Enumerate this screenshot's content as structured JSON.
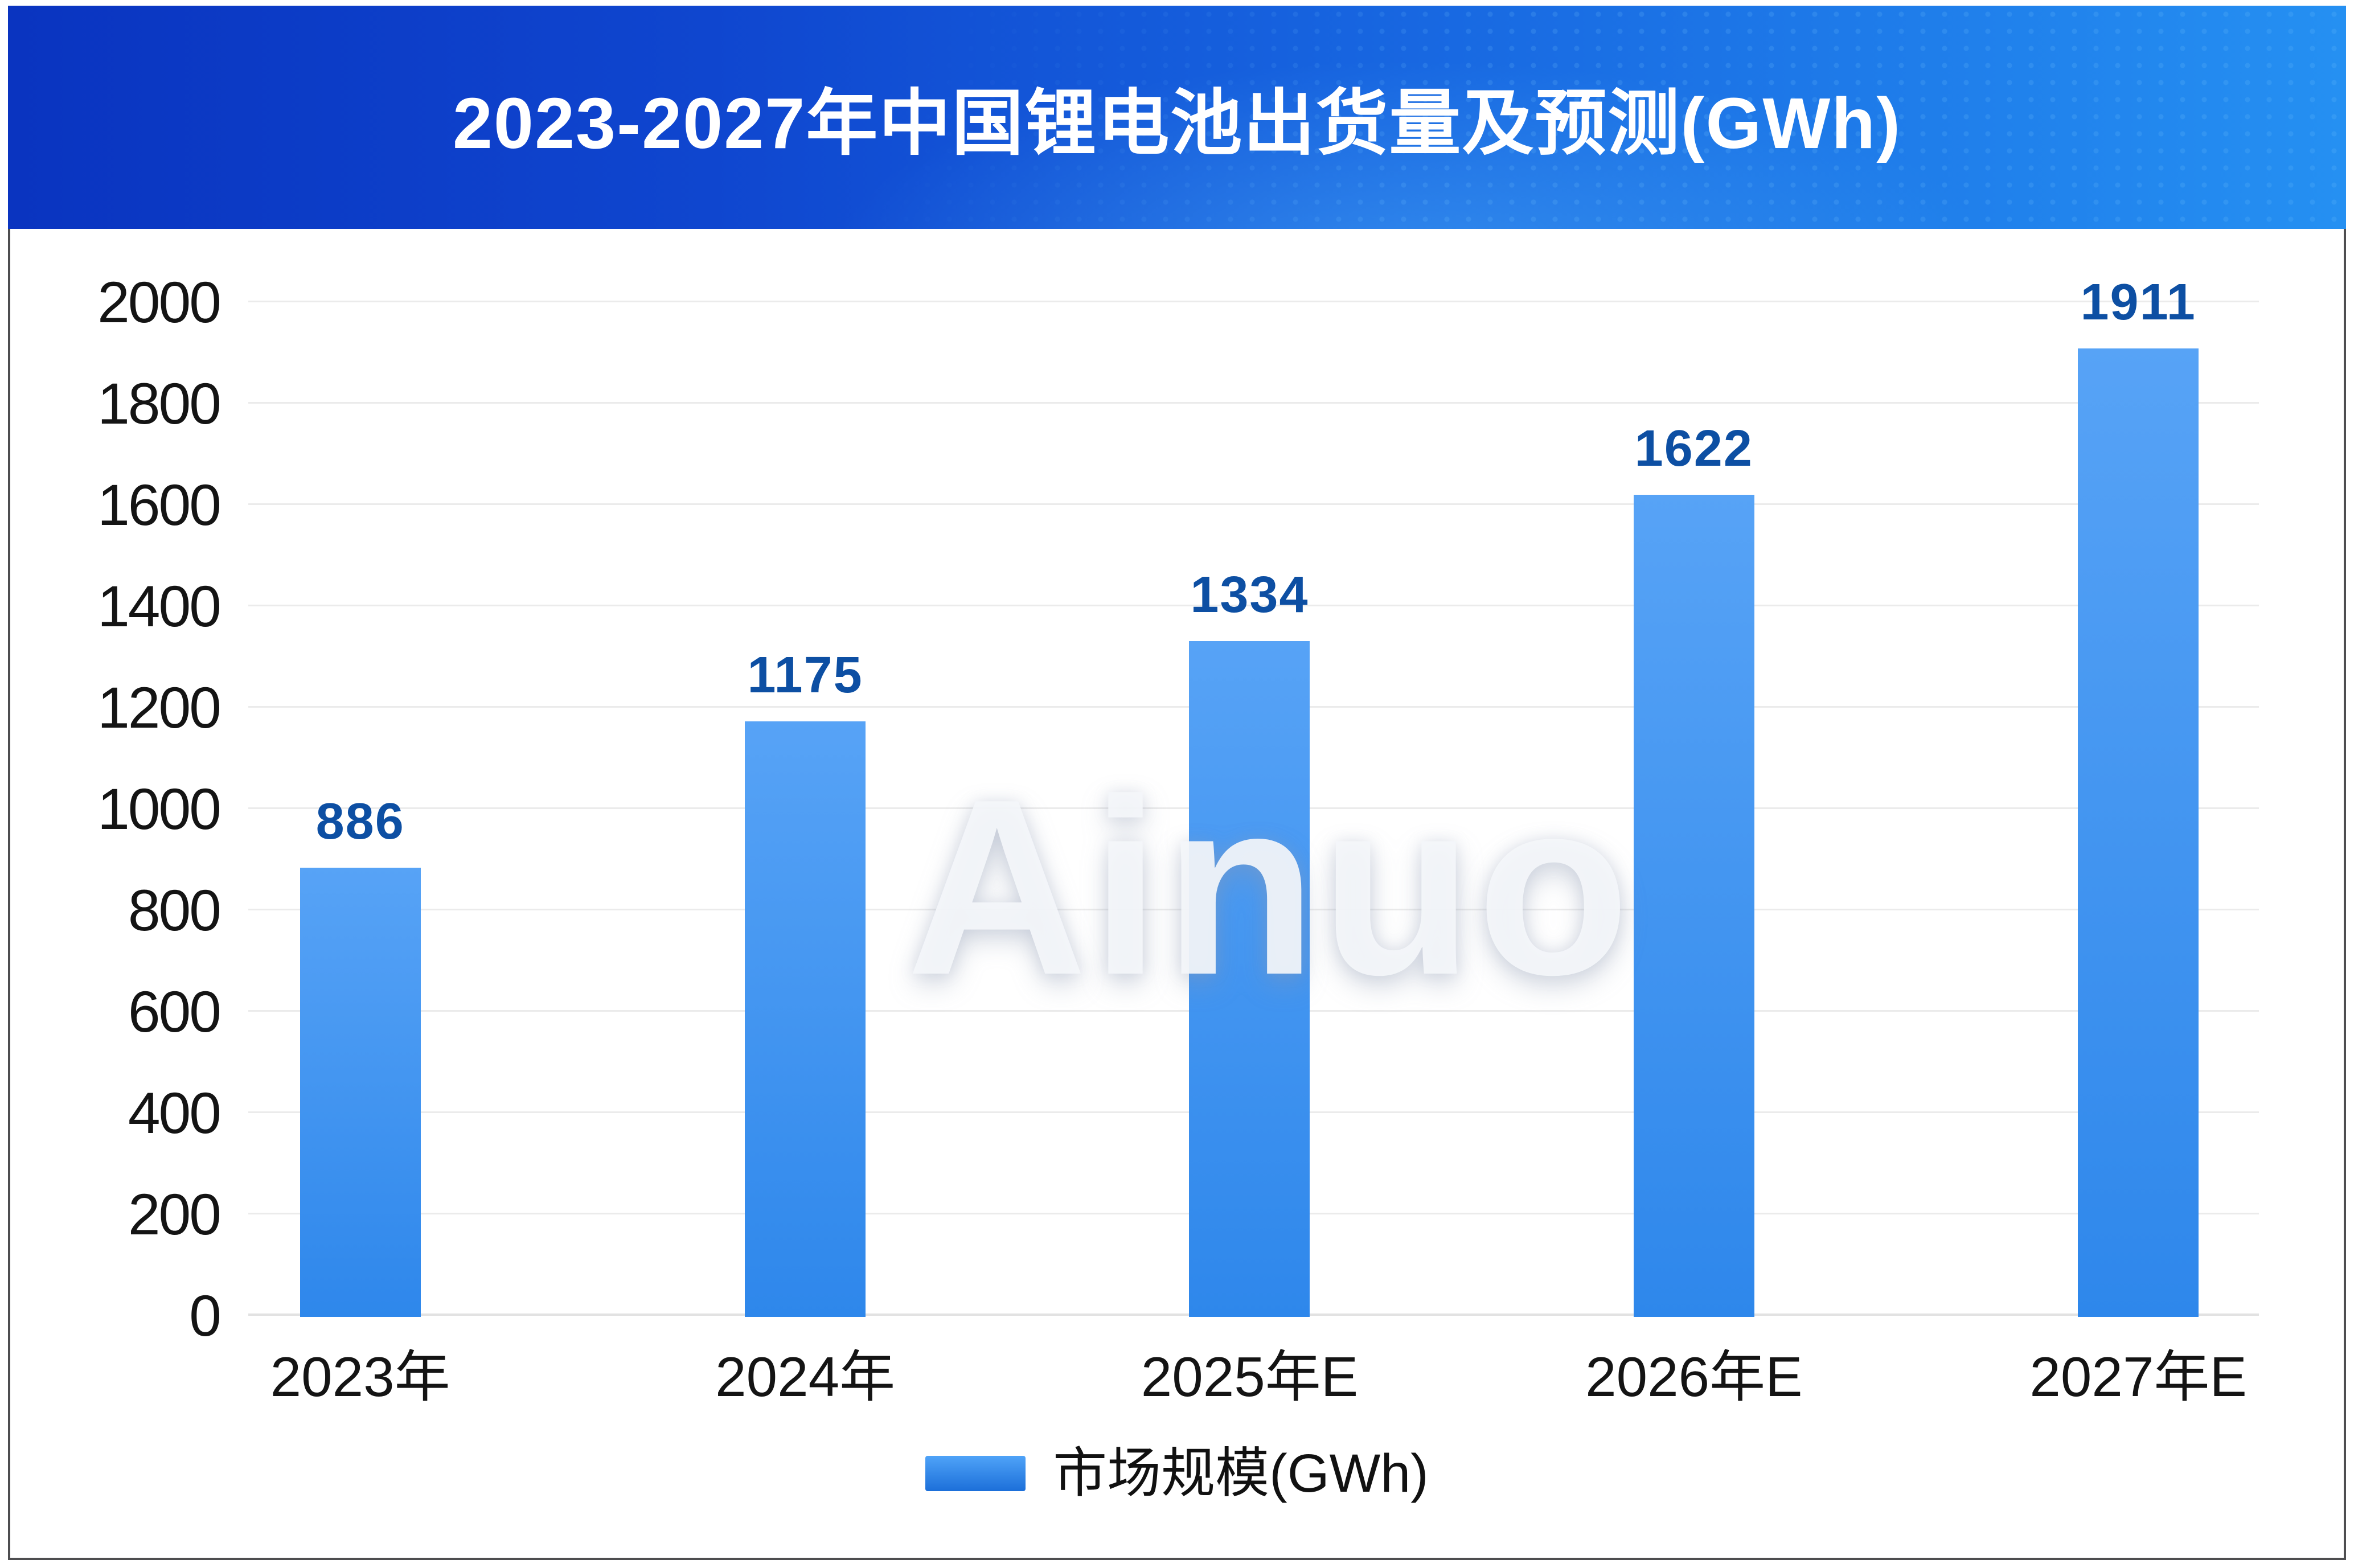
{
  "header": {
    "title": "2023-2027年中国锂电池出货量及预测(GWh)"
  },
  "watermark": "Ainuo",
  "legend": {
    "label": "市场规模(GWh)"
  },
  "chart_data": {
    "type": "bar",
    "title": "2023-2027年中国锂电池出货量及预测(GWh)",
    "categories": [
      "2023年",
      "2024年",
      "2025年E",
      "2026年E",
      "2027年E"
    ],
    "series": [
      {
        "name": "市场规模(GWh)",
        "values": [
          886,
          1175,
          1334,
          1622,
          1911
        ]
      }
    ],
    "ylim": [
      0,
      2000
    ],
    "ytick_interval": 200,
    "yticks": [
      0,
      200,
      400,
      600,
      800,
      1000,
      1200,
      1400,
      1600,
      1800,
      2000
    ],
    "grid": true,
    "legend_position": "bottom",
    "bar_centers_pct": [
      5.57,
      27.7,
      49.8,
      71.9,
      94.0
    ]
  },
  "colors": {
    "header_gradient_left": "#0a34c0",
    "header_gradient_right": "#2590f2",
    "bar_top": "#57a3f6",
    "bar_bottom": "#2e87eb",
    "value_label": "#0d4fa3",
    "legend_swatch_top": "#4fa3f8",
    "legend_swatch_bottom": "#1c6fd9",
    "gridline": "#ebebeb",
    "axis_text": "#141414",
    "title_text": "#ffffff"
  }
}
